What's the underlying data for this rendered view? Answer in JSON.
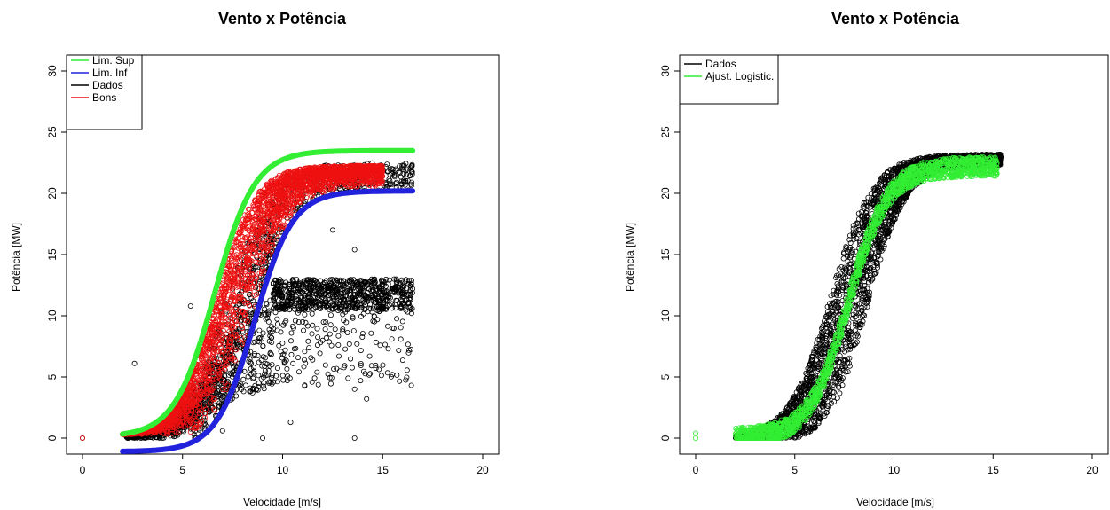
{
  "chart_data": [
    {
      "type": "scatter",
      "title": "Vento x Potência",
      "xlabel": "Velocidade [m/s]",
      "ylabel": "Potência [MW]",
      "xlim": [
        0,
        20
      ],
      "ylim": [
        0,
        30
      ],
      "xticks": [
        "0",
        "5",
        "10",
        "15",
        "20"
      ],
      "yticks": [
        "0",
        "5",
        "10",
        "15",
        "20",
        "25",
        "30"
      ],
      "grid": false,
      "legend_position": "top-left",
      "series": [
        {
          "name": "Lim. Sup",
          "color": "#33ee33",
          "kind": "logistic",
          "x_range": [
            2.0,
            16.5
          ],
          "params": {
            "lower": 0.1,
            "upper": 23.5,
            "mid": 6.6,
            "scale": 1.0
          }
        },
        {
          "name": "Lim. Inf",
          "color": "#2222dd",
          "kind": "logistic",
          "x_range": [
            2.0,
            16.5
          ],
          "params": {
            "lower": -1.1,
            "upper": 20.2,
            "mid": 8.6,
            "scale": 0.95
          }
        },
        {
          "name": "Dados",
          "color": "#000000",
          "kind": "scatter",
          "description_points": [
            [
              0,
              0
            ],
            [
              2.6,
              6.1
            ],
            [
              13.6,
              4.0
            ],
            [
              13.9,
              4.7
            ],
            [
              14.2,
              3.2
            ],
            [
              13.6,
              0.0
            ],
            [
              9.0,
              0.0
            ],
            [
              7.0,
              0.6
            ],
            [
              8.5,
              3.7
            ],
            [
              10.4,
              1.3
            ],
            [
              11.5,
              6.4
            ],
            [
              12.1,
              12.2
            ],
            [
              14.5,
              12.1
            ],
            [
              16.5,
              12.2
            ],
            [
              13.6,
              15.4
            ],
            [
              12.5,
              17.0
            ],
            [
              5.4,
              10.8
            ]
          ]
        },
        {
          "name": "Bons",
          "color": "#ee1111",
          "kind": "scatter_band"
        }
      ]
    },
    {
      "type": "scatter",
      "title": "Vento x Potência",
      "xlabel": "Velocidade [m/s]",
      "ylabel": "Potência [MW]",
      "xlim": [
        0,
        20
      ],
      "ylim": [
        0,
        30
      ],
      "xticks": [
        "0",
        "5",
        "10",
        "15",
        "20"
      ],
      "yticks": [
        "0",
        "5",
        "10",
        "15",
        "20",
        "25",
        "30"
      ],
      "grid": false,
      "legend_position": "top-left",
      "series": [
        {
          "name": "Dados",
          "color": "#000000",
          "kind": "scatter_band"
        },
        {
          "name": "Ajust. Logistic.",
          "color": "#33ee33",
          "kind": "scatter",
          "description_points": [
            [
              0,
              0.0
            ],
            [
              0,
              0.4
            ],
            [
              2.1,
              0.3
            ],
            [
              15.2,
              22.1
            ]
          ]
        }
      ]
    }
  ]
}
